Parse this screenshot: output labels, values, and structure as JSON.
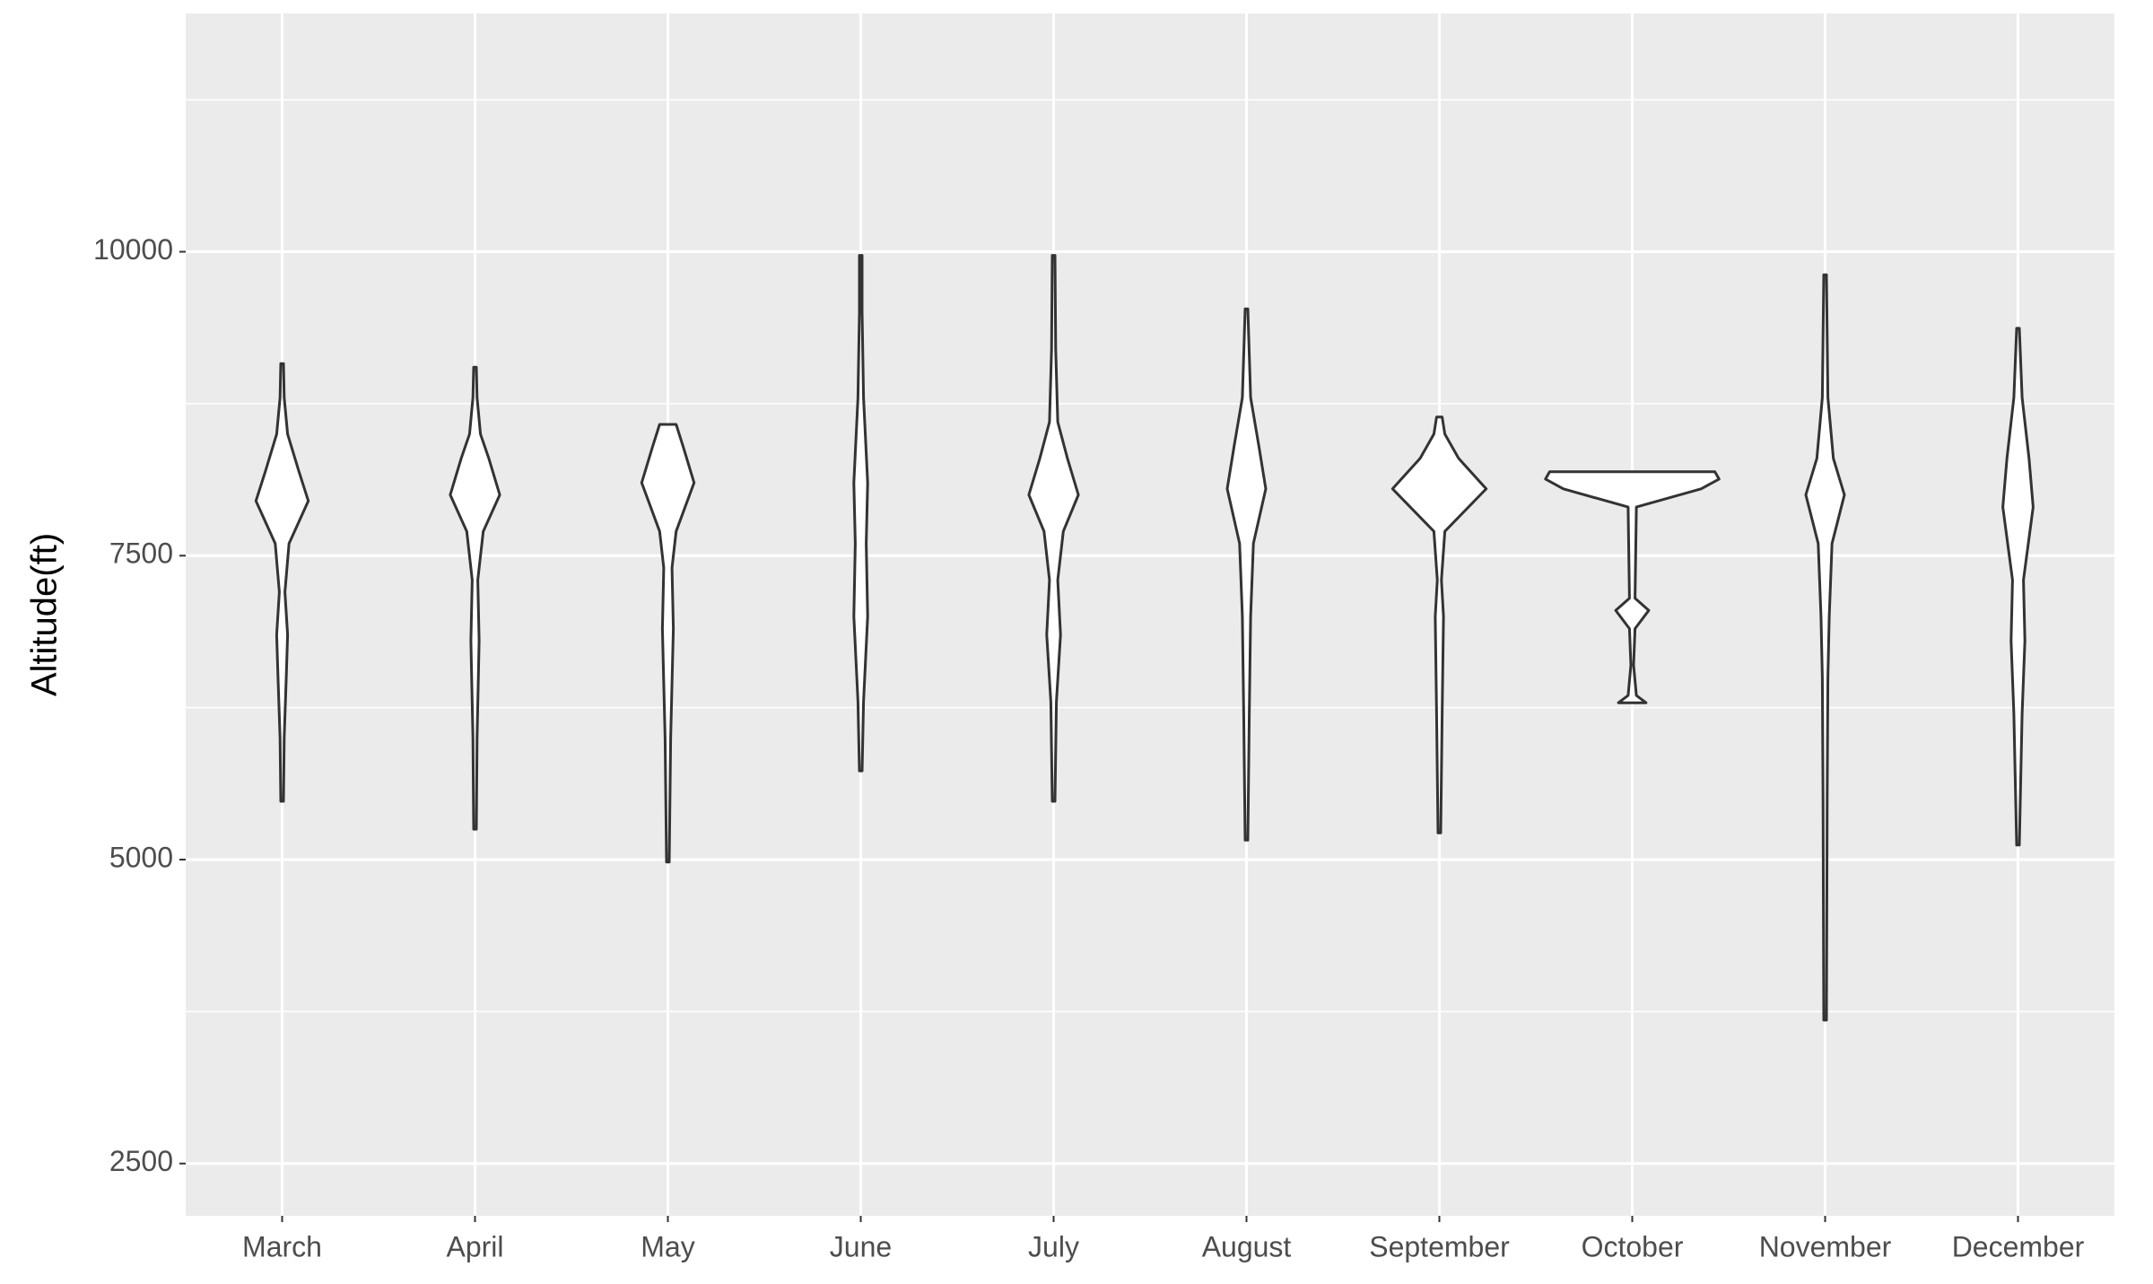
{
  "chart_data": {
    "type": "violin",
    "y_label": "Altitude(ft)",
    "categories": [
      "March",
      "April",
      "May",
      "June",
      "July",
      "August",
      "September",
      "October",
      "November",
      "December"
    ],
    "ylim": [
      2070,
      11960
    ],
    "yticks": [
      2500,
      5000,
      7500,
      10000
    ],
    "grid": true,
    "panel_color": "#ebebeb",
    "grid_color": "#ffffff",
    "fill": "#ffffff",
    "stroke": "#333333",
    "violins": [
      {
        "y": [
          5480,
          6000,
          6500,
          6850,
          7200,
          7600,
          7950,
          8200,
          8500,
          8800,
          9080
        ],
        "width": [
          1,
          1.5,
          3,
          4,
          2,
          5,
          19,
          12,
          4,
          1.5,
          1
        ]
      },
      {
        "y": [
          5250,
          6000,
          6800,
          7300,
          7700,
          8000,
          8300,
          8500,
          8800,
          9050
        ],
        "width": [
          1,
          1.5,
          3,
          2,
          6,
          18,
          10,
          4,
          1.5,
          1
        ]
      },
      {
        "y": [
          4980,
          6000,
          6900,
          7400,
          7700,
          8100,
          8400,
          8580
        ],
        "width": [
          1,
          2,
          4,
          3,
          6,
          19,
          11,
          6
        ]
      },
      {
        "y": [
          5730,
          6300,
          7000,
          7600,
          8100,
          8800,
          9500,
          9970
        ],
        "width": [
          1,
          2,
          5,
          4,
          5,
          2,
          1,
          1
        ]
      },
      {
        "y": [
          5480,
          6300,
          6850,
          7300,
          7700,
          8000,
          8300,
          8600,
          9200,
          9970
        ],
        "width": [
          1,
          2,
          5,
          3,
          7,
          18,
          10,
          3,
          1.5,
          1
        ]
      },
      {
        "y": [
          5160,
          6200,
          7000,
          7600,
          8050,
          8400,
          8800,
          9530
        ],
        "width": [
          1,
          2,
          3,
          5,
          14,
          9,
          3,
          1
        ]
      },
      {
        "y": [
          5220,
          6200,
          7000,
          7300,
          7700,
          8050,
          8300,
          8500,
          8640
        ],
        "width": [
          1,
          2,
          3,
          1.5,
          4,
          34,
          14,
          4,
          2
        ]
      },
      {
        "y": [
          6290,
          6350,
          6600,
          6900,
          7050,
          7150,
          7900,
          8050,
          8130,
          8190
        ],
        "width": [
          10,
          3,
          1,
          2,
          12,
          2,
          3,
          50,
          63,
          60
        ]
      },
      {
        "y": [
          3680,
          5500,
          6500,
          7000,
          7600,
          8000,
          8300,
          8800,
          9810
        ],
        "width": [
          1,
          1.5,
          2,
          3,
          5,
          14,
          6,
          2,
          1
        ]
      },
      {
        "y": [
          5120,
          6200,
          6800,
          7300,
          7900,
          8300,
          8800,
          9370
        ],
        "width": [
          1,
          3,
          5,
          4,
          11,
          8,
          3,
          1
        ]
      }
    ]
  }
}
